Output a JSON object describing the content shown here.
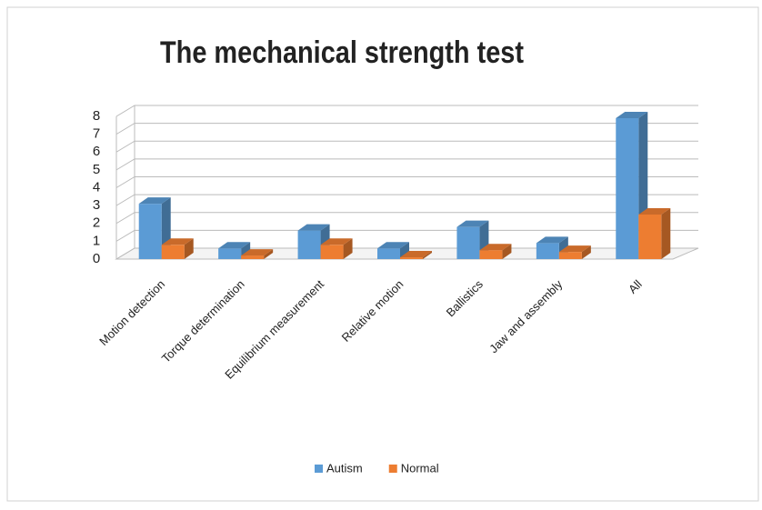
{
  "chart_data": {
    "type": "bar",
    "title": "The mechanical strength test",
    "categories": [
      "Motion detection",
      "Torque determination",
      "Equilibrium measurement",
      "Relative motion",
      "Ballistics",
      "Jaw and assembly",
      "All"
    ],
    "series": [
      {
        "name": "Autism",
        "color": "#5b9bd5",
        "values": [
          3.1,
          0.6,
          1.6,
          0.6,
          1.8,
          0.9,
          7.9
        ]
      },
      {
        "name": "Normal",
        "color": "#ed7d31",
        "values": [
          0.8,
          0.2,
          0.8,
          0.1,
          0.5,
          0.4,
          2.5
        ]
      }
    ],
    "ylim": [
      0,
      8
    ],
    "yticks": [
      0,
      1,
      2,
      3,
      4,
      5,
      6,
      7,
      8
    ],
    "grid": true
  }
}
